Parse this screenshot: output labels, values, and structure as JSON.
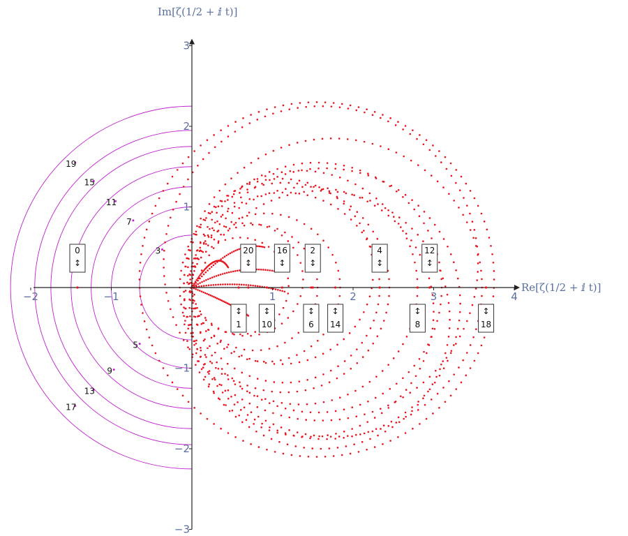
{
  "chart_data": {
    "type": "scatter",
    "title": "",
    "xlabel": "Re[ζ(1/2 + ⅈ t)]",
    "ylabel": "Im[ζ(1/2 + ⅈ t)]",
    "xlim": [
      -2,
      4
    ],
    "ylim": [
      -3,
      3
    ],
    "x_ticks": [
      -2,
      -1,
      1,
      2,
      3,
      4
    ],
    "y_ticks": [
      -3,
      -2,
      -1,
      1,
      2,
      3
    ],
    "x_tick_labels": [
      "−2",
      "−1",
      "1",
      "2",
      "3",
      "4"
    ],
    "y_tick_labels": [
      "−3",
      "−2",
      "−1",
      "1",
      "2",
      "3"
    ],
    "colors": {
      "points": "#e8141e",
      "arcs": "#c020d0",
      "ticks": "#5a6fa0",
      "axis": "#222222"
    },
    "zeta_loops": [
      {
        "cx": 0.6,
        "cy": 0.02,
        "r": 0.6
      },
      {
        "cx": 0.68,
        "cy": 0.1,
        "r": 0.7
      },
      {
        "cx": 0.78,
        "cy": 0.0,
        "r": 0.78
      },
      {
        "cx": 0.92,
        "cy": 0.0,
        "r": 0.92
      },
      {
        "cx": 1.1,
        "cy": 0.2,
        "r": 1.15
      },
      {
        "cx": 1.15,
        "cy": 0.0,
        "r": 1.18
      },
      {
        "cx": 1.15,
        "cy": 0.0,
        "r": 1.3
      },
      {
        "cx": 1.35,
        "cy": 0.0,
        "r": 1.45
      },
      {
        "cx": 1.55,
        "cy": 0.0,
        "r": 1.55
      },
      {
        "cx": 1.45,
        "cy": -0.3,
        "r": 1.55
      },
      {
        "cx": 1.6,
        "cy": -0.4,
        "r": 1.6
      },
      {
        "cx": 1.65,
        "cy": -0.2,
        "r": 1.68
      },
      {
        "cx": 1.75,
        "cy": 0.0,
        "r": 1.85
      },
      {
        "cx": 1.6,
        "cy": 0.3,
        "r": 1.95
      },
      {
        "cx": 1.55,
        "cy": 0.1,
        "r": 2.2
      }
    ],
    "inner_curves": [
      {
        "from": [
          0.0,
          0.0
        ],
        "ctrl": [
          0.5,
          0.6
        ],
        "to": [
          0.9,
          0.5
        ]
      },
      {
        "from": [
          0.0,
          0.0
        ],
        "ctrl": [
          0.5,
          0.3
        ],
        "to": [
          1.05,
          0.2
        ]
      },
      {
        "from": [
          0.0,
          0.0
        ],
        "ctrl": [
          0.6,
          0.1
        ],
        "to": [
          1.15,
          -0.05
        ]
      },
      {
        "from": [
          0.0,
          0.0
        ],
        "ctrl": [
          0.5,
          -0.2
        ],
        "to": [
          0.7,
          -0.35
        ]
      },
      {
        "from": [
          0.0,
          0.0
        ],
        "ctrl": [
          0.3,
          0.5
        ],
        "to": [
          0.45,
          0.25
        ]
      }
    ],
    "arcs_radii": [
      0.65,
      1.0,
      1.25,
      1.5,
      1.75,
      1.95,
      2.25
    ],
    "circle_labels": [
      {
        "text": "3",
        "x": -0.42,
        "y": 0.42
      },
      {
        "text": "7",
        "x": -0.78,
        "y": 0.78
      },
      {
        "text": "11",
        "x": -1.0,
        "y": 1.02
      },
      {
        "text": "15",
        "x": -1.27,
        "y": 1.27
      },
      {
        "text": "19",
        "x": -1.5,
        "y": 1.5
      },
      {
        "text": "5",
        "x": -0.7,
        "y": -0.75
      },
      {
        "text": "9",
        "x": -1.02,
        "y": -1.07
      },
      {
        "text": "13",
        "x": -1.27,
        "y": -1.32
      },
      {
        "text": "17",
        "x": -1.5,
        "y": -1.52
      }
    ],
    "labeled_points": [
      {
        "n": "0",
        "x": -1.42,
        "y": 0.0,
        "label_pos": "above",
        "arrow": "↕"
      },
      {
        "n": "20",
        "x": 0.7,
        "y": 0.0,
        "label_pos": "above",
        "arrow": "↕"
      },
      {
        "n": "16",
        "x": 1.12,
        "y": 0.0,
        "label_pos": "above",
        "arrow": "↕"
      },
      {
        "n": "2",
        "x": 1.5,
        "y": 0.0,
        "label_pos": "above",
        "arrow": "↕"
      },
      {
        "n": "4",
        "x": 2.33,
        "y": 0.0,
        "label_pos": "above",
        "arrow": "↕"
      },
      {
        "n": "12",
        "x": 2.95,
        "y": 0.0,
        "label_pos": "above",
        "arrow": "↕"
      },
      {
        "n": "1",
        "x": 0.58,
        "y": 0.0,
        "label_pos": "below",
        "arrow": "↕"
      },
      {
        "n": "10",
        "x": 0.93,
        "y": 0.0,
        "label_pos": "below",
        "arrow": "↕"
      },
      {
        "n": "6",
        "x": 1.48,
        "y": 0.0,
        "label_pos": "below",
        "arrow": "↕"
      },
      {
        "n": "14",
        "x": 1.78,
        "y": 0.0,
        "label_pos": "below",
        "arrow": "↕"
      },
      {
        "n": "8",
        "x": 2.8,
        "y": 0.0,
        "label_pos": "below",
        "arrow": "↕"
      },
      {
        "n": "18",
        "x": 3.65,
        "y": 0.0,
        "label_pos": "below",
        "arrow": "↕"
      }
    ]
  }
}
